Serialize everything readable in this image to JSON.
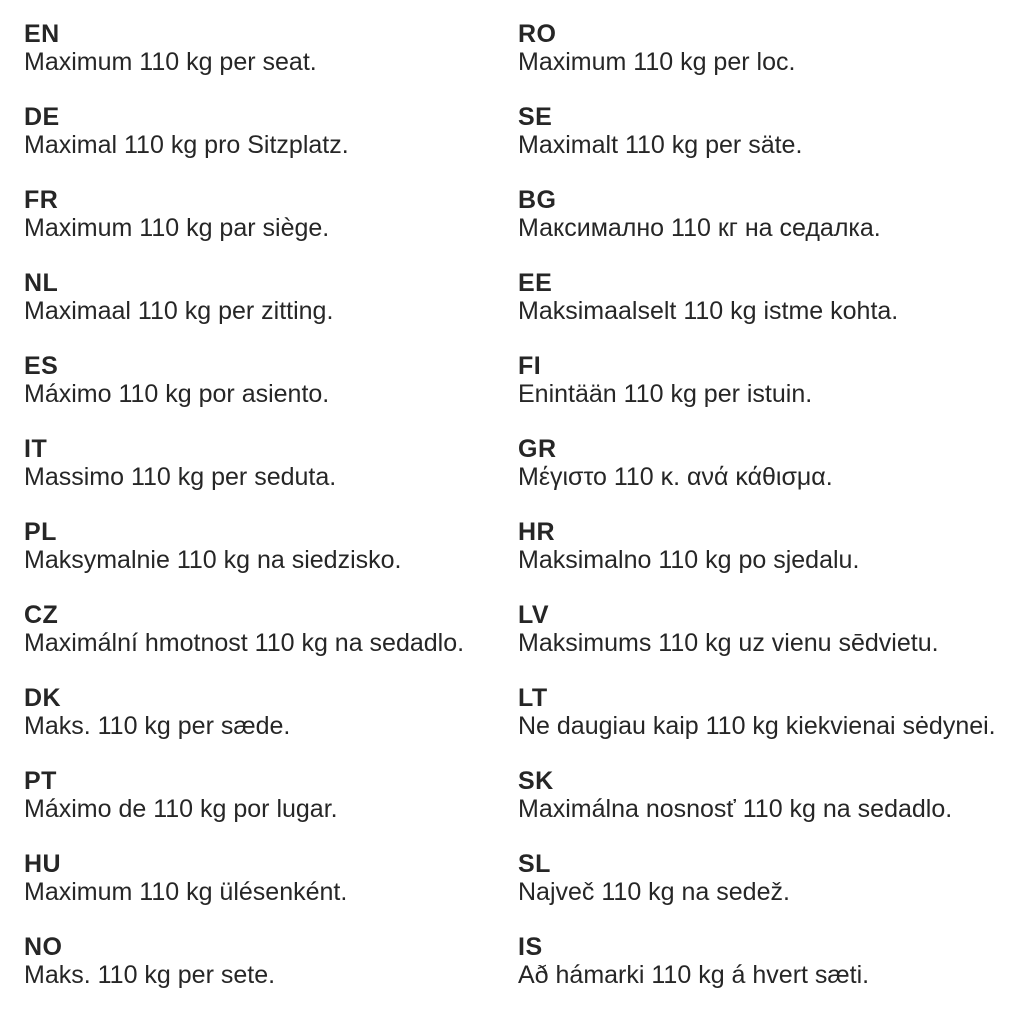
{
  "colors": {
    "background": "#ffffff",
    "text": "#262626"
  },
  "columns": [
    {
      "entries": [
        {
          "code": "EN",
          "text": "Maximum 110 kg per seat."
        },
        {
          "code": "DE",
          "text": "Maximal 110 kg pro Sitzplatz."
        },
        {
          "code": "FR",
          "text": "Maximum 110 kg par siège."
        },
        {
          "code": "NL",
          "text": "Maximaal 110 kg per zitting."
        },
        {
          "code": "ES",
          "text": "Máximo 110 kg por asiento."
        },
        {
          "code": "IT",
          "text": "Massimo 110 kg per seduta."
        },
        {
          "code": "PL",
          "text": "Maksymalnie 110 kg na siedzisko."
        },
        {
          "code": "CZ",
          "text": "Maximální hmotnost 110 kg na sedadlo."
        },
        {
          "code": "DK",
          "text": "Maks. 110 kg per sæde."
        },
        {
          "code": "PT",
          "text": "Máximo de 110 kg por lugar."
        },
        {
          "code": "HU",
          "text": "Maximum 110 kg ülésenként."
        },
        {
          "code": "NO",
          "text": "Maks. 110 kg per sete."
        }
      ]
    },
    {
      "entries": [
        {
          "code": "RO",
          "text": "Maximum 110 kg per loc."
        },
        {
          "code": "SE",
          "text": "Maximalt 110 kg per säte."
        },
        {
          "code": "BG",
          "text": "Максимално 110 кг на седалка."
        },
        {
          "code": "EE",
          "text": "Maksimaalselt 110 kg istme kohta."
        },
        {
          "code": "FI",
          "text": "Enintään 110 kg per istuin."
        },
        {
          "code": "GR",
          "text": "Μέγιστο 110 κ. ανά κάθισμα."
        },
        {
          "code": "HR",
          "text": "Maksimalno 110 kg po sjedalu."
        },
        {
          "code": "LV",
          "text": "Maksimums 110 kg uz vienu sēdvietu."
        },
        {
          "code": "LT",
          "text": "Ne daugiau kaip 110 kg kiekvienai sėdynei."
        },
        {
          "code": "SK",
          "text": "Maximálna nosnosť 110 kg na sedadlo."
        },
        {
          "code": "SL",
          "text": "Največ 110 kg na sedež."
        },
        {
          "code": "IS",
          "text": "Að hámarki 110 kg á hvert sæti."
        }
      ]
    }
  ]
}
